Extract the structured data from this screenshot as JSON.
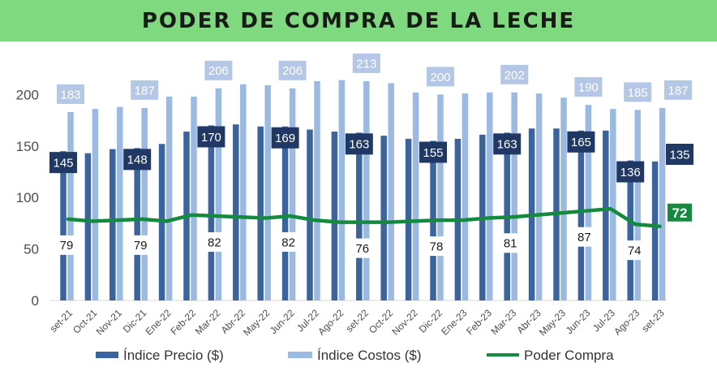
{
  "title": "PODER DE COMPRA DE LA LECHE",
  "chart_data": {
    "type": "bar",
    "title": "PODER DE COMPRA DE LA LECHE",
    "categories": [
      "set-21",
      "Oct-21",
      "Nov-21",
      "Dic-21",
      "Ene-22",
      "Feb-22",
      "Mar-22",
      "Abr-22",
      "May-22",
      "Jun-22",
      "Jul-22",
      "Ago-22",
      "set-22",
      "Oct-22",
      "Nov-22",
      "Dic-22",
      "Ene-23",
      "Feb-23",
      "Mar-23",
      "Abr-23",
      "May-23",
      "Jun-23",
      "Jul-23",
      "Ago-23",
      "set-23"
    ],
    "yticks": [
      "0",
      "50",
      "100",
      "150",
      "200"
    ],
    "ylim": [
      0,
      230
    ],
    "grid": false,
    "legend_position": "bottom",
    "series": [
      {
        "name": "Índice Precio ($)",
        "type": "bar",
        "color": "#3a64a0",
        "values": [
          145,
          143,
          147,
          148,
          152,
          164,
          170,
          171,
          169,
          169,
          166,
          164,
          163,
          160,
          157,
          155,
          157,
          161,
          163,
          167,
          167,
          165,
          165,
          136,
          135
        ]
      },
      {
        "name": "Índice Costos ($)",
        "type": "bar",
        "color": "#9bbae3",
        "values": [
          183,
          186,
          188,
          187,
          198,
          198,
          206,
          210,
          209,
          206,
          213,
          214,
          213,
          211,
          202,
          200,
          201,
          202,
          202,
          201,
          197,
          190,
          186,
          185,
          187
        ]
      },
      {
        "name": "Poder Compra",
        "type": "line",
        "color": "#138a3e",
        "values": [
          79,
          77,
          78,
          79,
          77,
          83,
          82,
          81,
          80,
          82,
          78,
          76,
          76,
          76,
          77,
          78,
          78,
          80,
          81,
          83,
          85,
          87,
          89,
          74,
          72
        ]
      }
    ],
    "data_labels": {
      "precio": [
        {
          "i": 0,
          "text": "145"
        },
        {
          "i": 3,
          "text": "148"
        },
        {
          "i": 6,
          "text": "170"
        },
        {
          "i": 9,
          "text": "169"
        },
        {
          "i": 12,
          "text": "163"
        },
        {
          "i": 15,
          "text": "155"
        },
        {
          "i": 18,
          "text": "163"
        },
        {
          "i": 21,
          "text": "165"
        },
        {
          "i": 23,
          "text": "136"
        },
        {
          "i": 24,
          "text": "135"
        }
      ],
      "costos": [
        {
          "i": 0,
          "text": "183"
        },
        {
          "i": 3,
          "text": "187"
        },
        {
          "i": 6,
          "text": "206"
        },
        {
          "i": 9,
          "text": "206"
        },
        {
          "i": 12,
          "text": "213"
        },
        {
          "i": 15,
          "text": "200"
        },
        {
          "i": 18,
          "text": "202"
        },
        {
          "i": 21,
          "text": "190"
        },
        {
          "i": 23,
          "text": "185"
        },
        {
          "i": 24,
          "text": "187"
        }
      ],
      "poder": [
        {
          "i": 0,
          "text": "79"
        },
        {
          "i": 3,
          "text": "79"
        },
        {
          "i": 6,
          "text": "82"
        },
        {
          "i": 9,
          "text": "82"
        },
        {
          "i": 12,
          "text": "76"
        },
        {
          "i": 15,
          "text": "78"
        },
        {
          "i": 18,
          "text": "81"
        },
        {
          "i": 21,
          "text": "87"
        },
        {
          "i": 23,
          "text": "74"
        },
        {
          "i": 24,
          "text": "72"
        }
      ]
    }
  }
}
